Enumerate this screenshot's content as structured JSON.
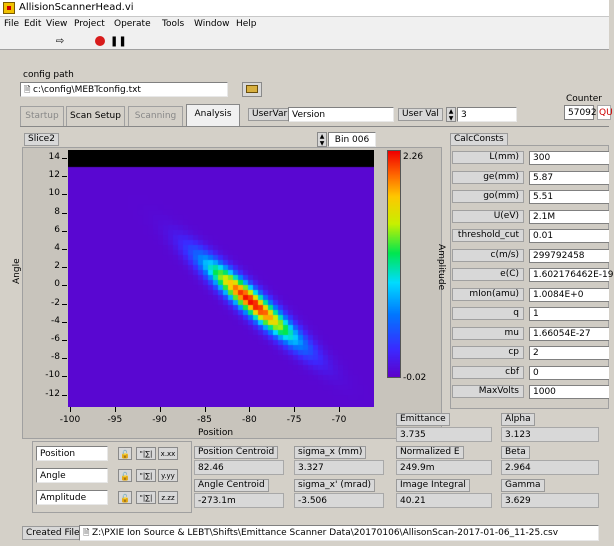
{
  "window": {
    "title": "AllisionScannerHead.vi"
  },
  "menu": [
    "File",
    "Edit",
    "View",
    "Project",
    "Operate",
    "Tools",
    "Window",
    "Help"
  ],
  "toolbar": {
    "run_icon": "run-arrow-icon",
    "stop_icon": "abort-icon",
    "pause_icon": "pause-icon"
  },
  "config": {
    "label": "config path",
    "value": "c:\\config\\MEBTconfig.txt"
  },
  "counter": {
    "label": "Counter",
    "value": "57092",
    "qu": "QU"
  },
  "tabs": [
    "Startup",
    "Scan Setup",
    "Scanning",
    "Analysis"
  ],
  "uservar": {
    "button": "UserVar",
    "value": "Version",
    "val_button": "User Val",
    "val_value": "3"
  },
  "slice": {
    "label": "Slice2",
    "bin": "Bin 006"
  },
  "plot": {
    "xlabel": "Position",
    "ylabel": "Angle",
    "xticks": [
      "-100",
      "-95",
      "-90",
      "-85",
      "-80",
      "-75",
      "-70"
    ],
    "yticks": [
      "14",
      "12",
      "10",
      "8",
      "6",
      "4",
      "2",
      "0",
      "-2",
      "-4",
      "-6",
      "-8",
      "-10",
      "-12"
    ]
  },
  "colorbar": {
    "max": "2.26",
    "min": "-0.02",
    "label": "Amplitude"
  },
  "calc": {
    "button": "CalcConsts",
    "rows": [
      {
        "label": "L(mm)",
        "value": "300"
      },
      {
        "label": "ge(mm)",
        "value": "5.87"
      },
      {
        "label": "go(mm)",
        "value": "5.51"
      },
      {
        "label": "U(eV)",
        "value": "2.1M"
      },
      {
        "label": "threshold_cut",
        "value": "0.01"
      },
      {
        "label": "c(m/s)",
        "value": "299792458"
      },
      {
        "label": "e(C)",
        "value": "1.602176462E-19"
      },
      {
        "label": "mIon(amu)",
        "value": "1.0084E+0"
      },
      {
        "label": "q",
        "value": "1"
      },
      {
        "label": "mu",
        "value": "1.66054E-27"
      },
      {
        "label": "cp",
        "value": "2"
      },
      {
        "label": "cbf",
        "value": "0"
      },
      {
        "label": "MaxVolts",
        "value": "1000"
      }
    ]
  },
  "legend": [
    {
      "name": "Position",
      "b2": "\"|∑|",
      "b3": "x.xx"
    },
    {
      "name": "Angle",
      "b2": "\"|∑|",
      "b3": "y.yy"
    },
    {
      "name": "Amplitude",
      "b2": "\"|∑|",
      "b3": "z.zz"
    }
  ],
  "results": {
    "pos_centroid_label": "Position Centroid",
    "pos_centroid": "82.46",
    "angle_centroid_label": "Angle Centroid",
    "angle_centroid": "-273.1m",
    "sigma_x_label": "sigma_x (mm)",
    "sigma_x": "3.327",
    "sigma_xp_label": "sigma_x' (mrad)",
    "sigma_xp": "-3.506",
    "emittance_label": "Emittance",
    "emittance": "3.735",
    "norm_e_label": "Normalized E",
    "norm_e": "249.9m",
    "image_int_label": "Image Integral",
    "image_int": "40.21",
    "alpha_label": "Alpha",
    "alpha": "3.123",
    "beta_label": "Beta",
    "beta": "2.964",
    "gamma_label": "Gamma",
    "gamma": "3.629"
  },
  "file": {
    "button": "Created File",
    "path": "Z:\\PXIE Ion Source & LEBT\\Shifts\\Emittance Scanner Data\\20170106\\AllisonScan-2017-01-06_11-25.csv"
  }
}
